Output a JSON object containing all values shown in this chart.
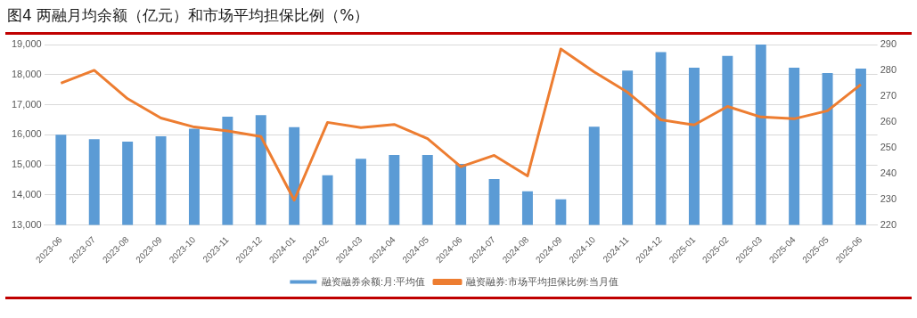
{
  "chart_data": {
    "type": "bar",
    "title": "图4  两融月均余额（亿元）和市场平均担保比例（%）",
    "categories": [
      "2023-06",
      "2023-07",
      "2023-08",
      "2023-09",
      "2023-10",
      "2023-11",
      "2023-12",
      "2024-01",
      "2024-02",
      "2024-03",
      "2024-04",
      "2024-05",
      "2024-06",
      "2024-07",
      "2024-08",
      "2024-09",
      "2024-10",
      "2024-11",
      "2024-12",
      "2025-01",
      "2025-02",
      "2025-03",
      "2025-04",
      "2025-05",
      "2025-06"
    ],
    "series": [
      {
        "name": "融资融券余额:月:平均值",
        "color": "#5b9bd5",
        "values": [
          16000,
          15850,
          15770,
          15950,
          16200,
          16600,
          16650,
          16250,
          14650,
          15200,
          15330,
          15330,
          15030,
          14530,
          14120,
          13850,
          16270,
          18130,
          18750,
          18230,
          18620,
          19000,
          18230,
          18050,
          18200
        ]
      },
      {
        "name": "融资融券:市场平均担保比例:当月值",
        "type": "line",
        "axis": "y2",
        "color": "#ed7d31",
        "values": [
          275,
          280,
          269,
          261.5,
          258,
          256.5,
          254.3,
          229.6,
          259.8,
          257.8,
          259,
          253.5,
          242.6,
          247,
          239,
          288.3,
          279.4,
          271.5,
          260.8,
          258.8,
          266,
          261.9,
          261.2,
          264.3,
          274.5
        ]
      }
    ],
    "ylim": [
      13000,
      19000
    ],
    "yticks": [
      {
        "value": 13000,
        "label": "13,000"
      },
      {
        "value": 14000,
        "label": "14,000"
      },
      {
        "value": 15000,
        "label": "15,000"
      },
      {
        "value": 16000,
        "label": "16,000"
      },
      {
        "value": 17000,
        "label": "17,000"
      },
      {
        "value": 18000,
        "label": "18,000"
      },
      {
        "value": 19000,
        "label": "19,000"
      }
    ],
    "y2lim": [
      220,
      290
    ],
    "y2ticks": [
      220,
      230,
      240,
      250,
      260,
      270,
      280,
      290
    ],
    "grid": "y",
    "legend": "bottom",
    "marker": "none",
    "line_style": "solid"
  }
}
